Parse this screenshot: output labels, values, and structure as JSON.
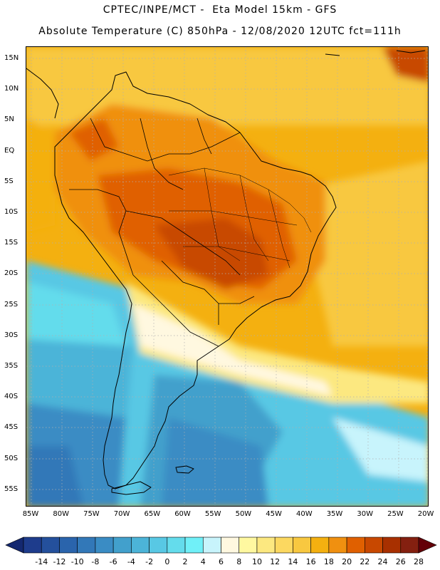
{
  "header": {
    "line1": "CPTEC/INPE/MCT -  Eta Model 15km - GFS",
    "line2": "Absolute Temperature (C) 850hPa - 12/08/2020 12UTC fct=111h"
  },
  "lat_labels": [
    "15N",
    "10N",
    "5N",
    "EQ",
    "5S",
    "10S",
    "15S",
    "20S",
    "25S",
    "30S",
    "35S",
    "40S",
    "45S",
    "50S",
    "55S"
  ],
  "lon_labels": [
    "85W",
    "80W",
    "75W",
    "70W",
    "65W",
    "60W",
    "55W",
    "50W",
    "45W",
    "40W",
    "35W",
    "30W",
    "25W",
    "20W"
  ],
  "colorbar": {
    "labels": [
      "-14",
      "-12",
      "-10",
      "-8",
      "-6",
      "-4",
      "-2",
      "0",
      "2",
      "4",
      "6",
      "8",
      "10",
      "12",
      "14",
      "16",
      "18",
      "20",
      "22",
      "24",
      "26",
      "28"
    ],
    "colors": [
      "#1e3c8c",
      "#24509c",
      "#2a64ac",
      "#3278b8",
      "#3a8cc4",
      "#42a0cc",
      "#4cb4d8",
      "#58c8e4",
      "#64dcec",
      "#70f0f8",
      "#c8f4fc",
      "#fff8e0",
      "#fff8a0",
      "#fce880",
      "#fcd860",
      "#f8c840",
      "#f4b010",
      "#f09010",
      "#e06000",
      "#c84800",
      "#a83000",
      "#842010"
    ],
    "left_arrow_color": "#142870",
    "right_arrow_color": "#640008"
  },
  "map": {
    "domain": "South America",
    "field": "Absolute Temperature (C) 850hPa"
  }
}
